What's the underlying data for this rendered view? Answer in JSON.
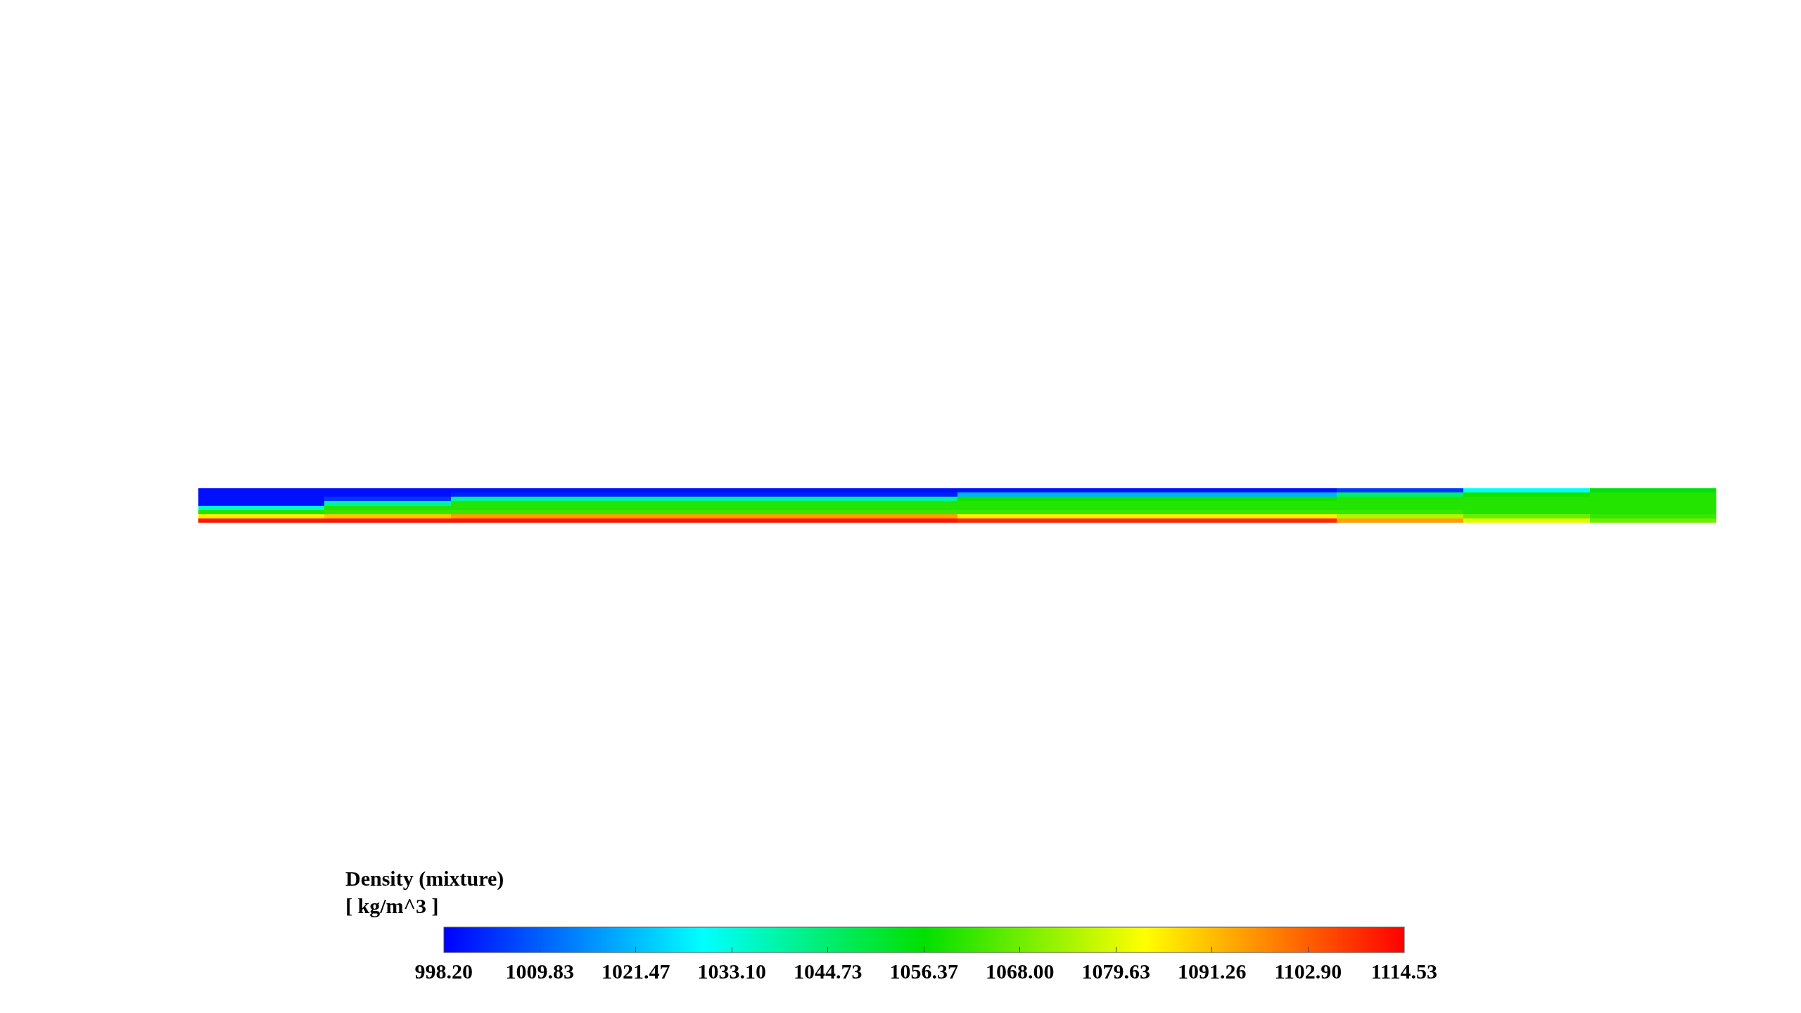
{
  "chart_data": {
    "type": "heatmap",
    "clabel": "Density (mixture)\n[ kg/m^3 ]",
    "categories": [
      null,
      null,
      null,
      null,
      null,
      null,
      null,
      null,
      null,
      null,
      null,
      null
    ],
    "y_categories": [
      null,
      null,
      null,
      null,
      null,
      null,
      null,
      null
    ],
    "cells": [
      [
        1000,
        1000,
        1000,
        1000,
        1000,
        1000,
        1000,
        1000,
        1000,
        1005,
        1030,
        1055
      ],
      [
        1000,
        1000,
        1002,
        1002,
        1002,
        1002,
        1020,
        1020,
        1020,
        1045,
        1058,
        1060
      ],
      [
        1000,
        1005,
        1040,
        1040,
        1040,
        1040,
        1058,
        1058,
        1058,
        1060,
        1060,
        1060
      ],
      [
        1000,
        1040,
        1060,
        1060,
        1060,
        1060,
        1060,
        1060,
        1060,
        1060,
        1060,
        1060
      ],
      [
        1035,
        1060,
        1060,
        1060,
        1060,
        1060,
        1060,
        1060,
        1060,
        1060,
        1060,
        1060
      ],
      [
        1060,
        1062,
        1062,
        1062,
        1062,
        1062,
        1062,
        1062,
        1062,
        1062,
        1060,
        1060
      ],
      [
        1085,
        1090,
        1095,
        1095,
        1095,
        1095,
        1085,
        1085,
        1085,
        1075,
        1068,
        1062
      ],
      [
        1112,
        1112,
        1112,
        1112,
        1112,
        1112,
        1110,
        1110,
        1110,
        1095,
        1080,
        1068
      ]
    ],
    "clim": [
      998.2,
      1114.53
    ],
    "cticks": [
      {
        "value": 998.2,
        "label": "998.20"
      },
      {
        "value": 1009.83,
        "label": "1009.83"
      },
      {
        "value": 1021.47,
        "label": "1021.47"
      },
      {
        "value": 1033.1,
        "label": "1033.10"
      },
      {
        "value": 1044.73,
        "label": "1044.73"
      },
      {
        "value": 1056.37,
        "label": "1056.37"
      },
      {
        "value": 1068.0,
        "label": "1068.00"
      },
      {
        "value": 1079.63,
        "label": "1079.63"
      },
      {
        "value": 1091.26,
        "label": "1091.26"
      },
      {
        "value": 1102.9,
        "label": "1102.90"
      },
      {
        "value": 1114.53,
        "label": "1114.53"
      }
    ]
  }
}
